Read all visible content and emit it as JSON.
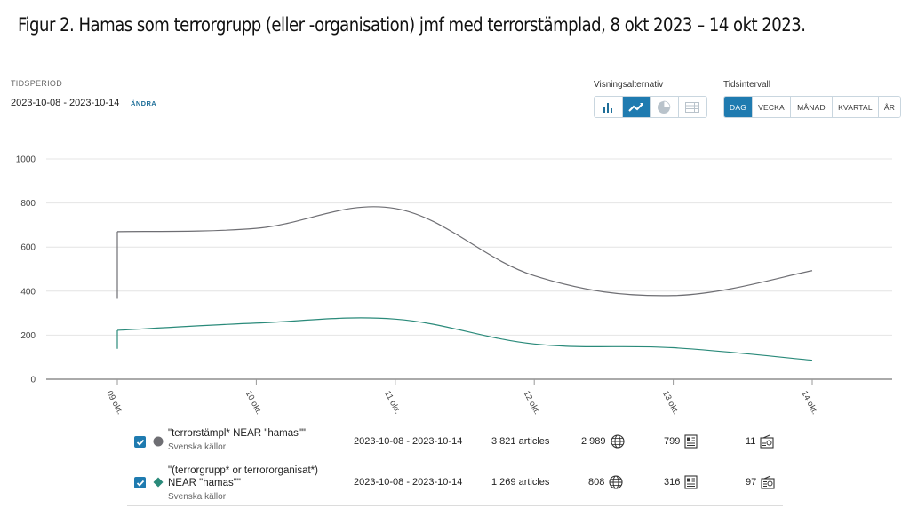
{
  "figure_title": "Figur 2. Hamas som terrorgrupp (eller -organisation) jmf med terrorstämplad, 8 okt 2023 – 14 okt 2023.",
  "period": {
    "label": "TIDSPERIOD",
    "value": "2023-10-08 - 2023-10-14",
    "change_label": "ÄNDRA"
  },
  "view_options": {
    "label": "Visningsalternativ",
    "buttons": [
      {
        "icon": "bar-chart-icon",
        "active": false
      },
      {
        "icon": "line-chart-icon",
        "active": true
      },
      {
        "icon": "pie-chart-icon",
        "active": false
      },
      {
        "icon": "table-icon",
        "active": false
      }
    ]
  },
  "interval": {
    "label": "Tidsintervall",
    "options": [
      "DAG",
      "VECKA",
      "MÅNAD",
      "KVARTAL",
      "ÅR"
    ],
    "selected": "DAG"
  },
  "colors": {
    "accent": "#1f7bb0",
    "series1": "#6e6e73",
    "series2": "#2a8a7a"
  },
  "chart_data": {
    "type": "line",
    "x": [
      "09 okt.",
      "10 okt.",
      "11 okt.",
      "12 okt.",
      "13 okt.",
      "14 okt."
    ],
    "yticks": [
      0,
      200,
      400,
      600,
      800,
      1000
    ],
    "ylim": [
      0,
      1000
    ],
    "grid": true,
    "series": [
      {
        "name": "\"terrorstämpl* NEAR \"hamas\"\"",
        "color": "#6e6e73",
        "start_value": 365,
        "values": [
          670,
          685,
          775,
          470,
          380,
          493
        ]
      },
      {
        "name": "\"(terrorgrupp* or terrororganisat*) NEAR \"hamas\"\"",
        "color": "#2a8a7a",
        "start_value": 138,
        "values": [
          222,
          255,
          273,
          160,
          143,
          86
        ]
      }
    ]
  },
  "legend": [
    {
      "name_lines": [
        "\"terrorstämpl* NEAR \"hamas\"\""
      ],
      "source": "Svenska källor",
      "marker": "circle",
      "period": "2023-10-08 - 2023-10-14",
      "articles": "3 821 articles",
      "web": "2 989",
      "print": "799",
      "broadcast": "11"
    },
    {
      "name_lines": [
        "\"(terrorgrupp* or terrororganisat*)",
        "NEAR \"hamas\"\""
      ],
      "source": "Svenska källor",
      "marker": "diamond",
      "period": "2023-10-08 - 2023-10-14",
      "articles": "1 269 articles",
      "web": "808",
      "print": "316",
      "broadcast": "97"
    }
  ]
}
